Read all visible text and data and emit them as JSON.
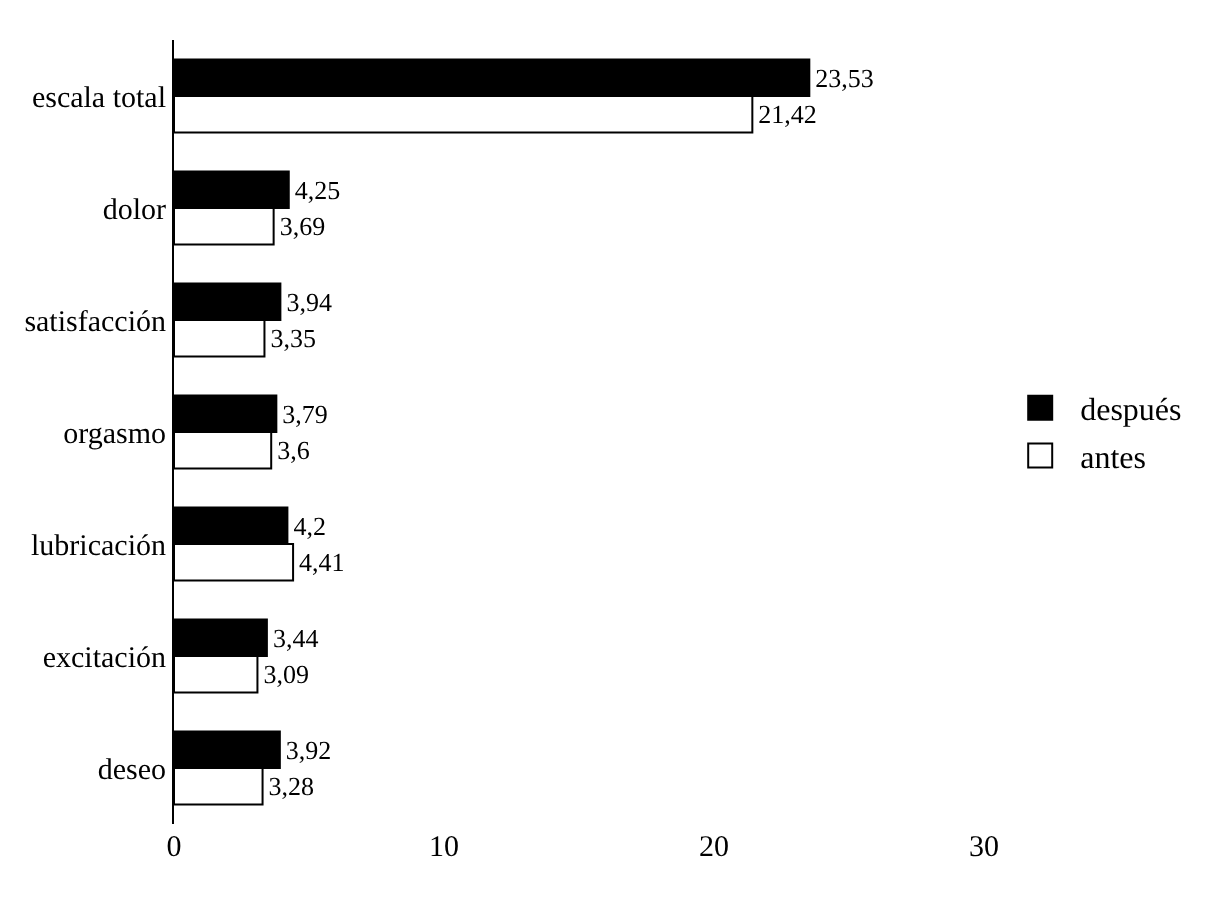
{
  "chart_data": {
    "type": "bar",
    "orientation": "horizontal",
    "categories": [
      "escala total",
      "dolor",
      "satisfacción",
      "orgasmo",
      "lubricación",
      "excitación",
      "deseo"
    ],
    "series": [
      {
        "name": "después",
        "color": "#000000",
        "values": [
          23.53,
          4.25,
          3.94,
          3.79,
          4.2,
          3.44,
          3.92
        ],
        "value_labels": [
          "23,53",
          "4,25",
          "3,94",
          "3,79",
          "4,2",
          "3,44",
          "3,92"
        ]
      },
      {
        "name": "antes",
        "color": "#ffffff",
        "values": [
          21.42,
          3.69,
          3.35,
          3.6,
          4.41,
          3.09,
          3.28
        ],
        "value_labels": [
          "21,42",
          "3,69",
          "3,35",
          "3,6",
          "4,41",
          "3,09",
          "3,28"
        ]
      }
    ],
    "xlim": [
      0,
      30
    ],
    "xticks": [
      0,
      10,
      20,
      30
    ],
    "legend": "right"
  }
}
